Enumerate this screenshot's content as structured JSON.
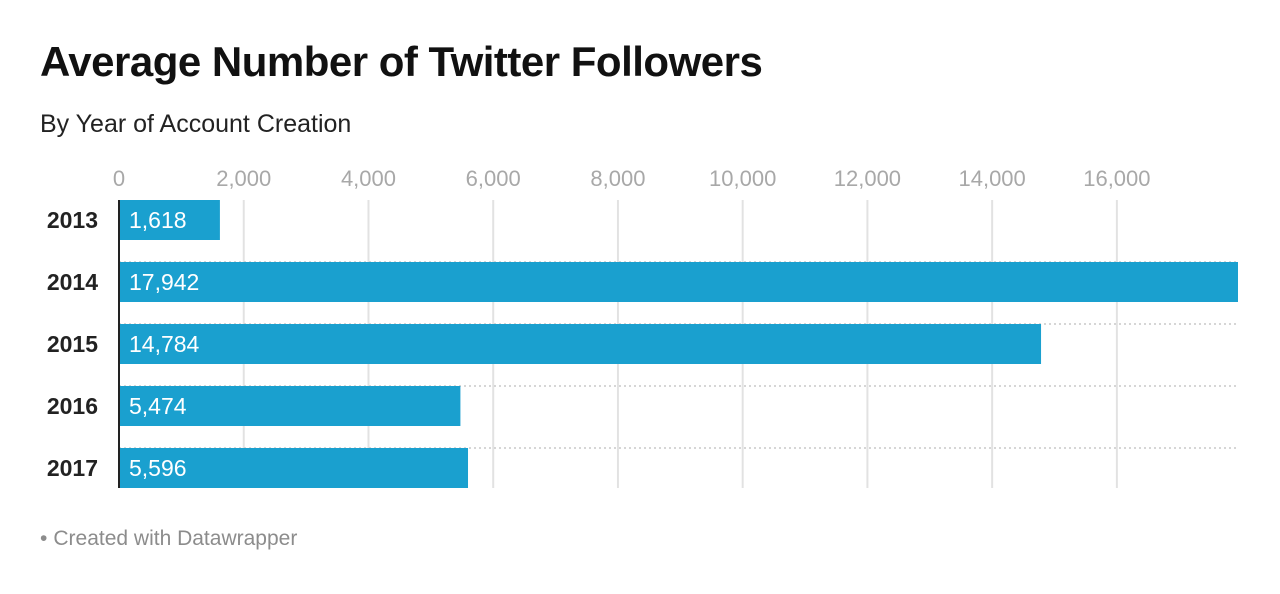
{
  "header": {
    "title": "Average Number of Twitter Followers",
    "subtitle": "By Year of Account Creation"
  },
  "footer": {
    "bullet": "•",
    "text": "Created with Datawrapper"
  },
  "colors": {
    "bar": "#1aa0cf",
    "grid": "#e2e2e2",
    "tick_text": "#a8a8a8",
    "axis": "#222222",
    "value_text": "#ffffff"
  },
  "chart_data": {
    "type": "bar",
    "orientation": "horizontal",
    "categories": [
      "2013",
      "2014",
      "2015",
      "2016",
      "2017"
    ],
    "values": [
      1618,
      17942,
      14784,
      5474,
      5596
    ],
    "value_labels": [
      "1,618",
      "17,942",
      "14,784",
      "5,474",
      "5,596"
    ],
    "x_ticks": [
      0,
      2000,
      4000,
      6000,
      8000,
      10000,
      12000,
      14000,
      16000
    ],
    "x_tick_labels": [
      "0",
      "2,000",
      "4,000",
      "6,000",
      "8,000",
      "10,000",
      "12,000",
      "14,000",
      "16,000"
    ],
    "xlim": [
      0,
      17942
    ],
    "grid": true,
    "title": "Average Number of Twitter Followers",
    "subtitle": "By Year of Account Creation"
  }
}
